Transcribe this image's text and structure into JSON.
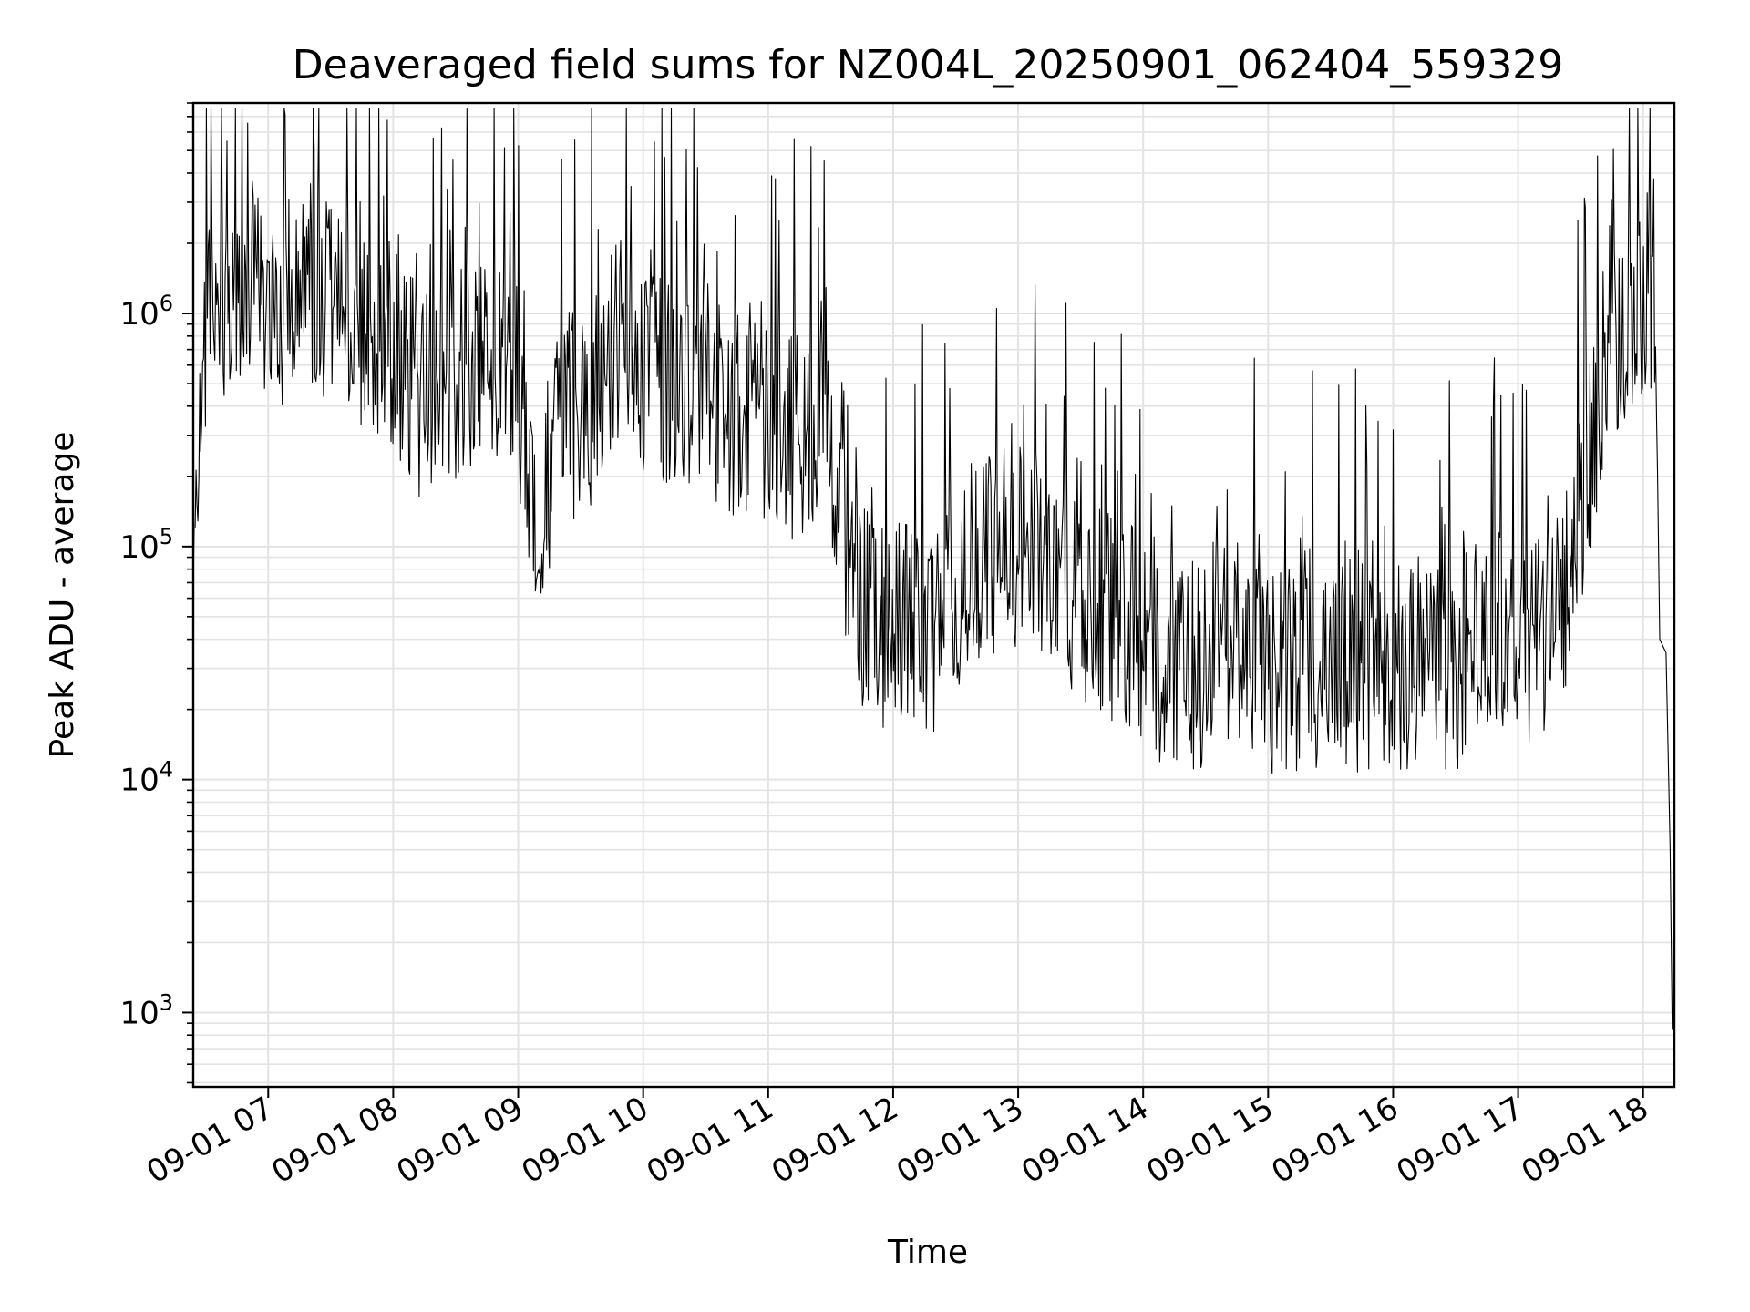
{
  "chart_data": {
    "type": "line",
    "title": "Deaveraged field sums for NZ004L_20250901_062404_559329",
    "xlabel": "Time",
    "ylabel": "Peak ADU - average",
    "y_scale": "log",
    "ylim": [
      480,
      8000000
    ],
    "xlim": [
      "2025-09-01 06:24",
      "2025-09-01 18:15"
    ],
    "grid": true,
    "legend": "none",
    "x_ticks": [
      "09-01 07",
      "09-01 08",
      "09-01 09",
      "09-01 10",
      "09-01 11",
      "09-01 12",
      "09-01 13",
      "09-01 14",
      "09-01 15",
      "09-01 16",
      "09-01 17",
      "09-01 18"
    ],
    "y_ticks": [
      {
        "base": "10",
        "exp": "3",
        "value": 1000
      },
      {
        "base": "10",
        "exp": "4",
        "value": 10000
      },
      {
        "base": "10",
        "exp": "5",
        "value": 100000
      },
      {
        "base": "10",
        "exp": "6",
        "value": 1000000
      }
    ],
    "series": [
      {
        "color": "#000000",
        "points": [
          [
            "2025-09-01 06:24",
            120000.0
          ],
          [
            "2025-09-01 06:30",
            800000.0
          ],
          [
            "2025-09-01 06:40",
            1300000.0
          ],
          [
            "2025-09-01 06:50",
            1500000.0
          ],
          [
            "2025-09-01 07:00",
            1200000.0
          ],
          [
            "2025-09-01 07:10",
            1100000.0
          ],
          [
            "2025-09-01 07:20",
            1300000.0
          ],
          [
            "2025-09-01 07:30",
            1200000.0
          ],
          [
            "2025-09-01 07:40",
            1000000.0
          ],
          [
            "2025-09-01 07:50",
            850000.0
          ],
          [
            "2025-09-01 08:00",
            700000.0
          ],
          [
            "2025-09-01 08:10",
            400000.0
          ],
          [
            "2025-09-01 08:20",
            400000.0
          ],
          [
            "2025-09-01 08:30",
            550000.0
          ],
          [
            "2025-09-01 08:40",
            600000.0
          ],
          [
            "2025-09-01 08:50",
            650000.0
          ],
          [
            "2025-09-01 09:00",
            500000.0
          ],
          [
            "2025-09-01 09:10",
            120000.0
          ],
          [
            "2025-09-01 09:20",
            400000.0
          ],
          [
            "2025-09-01 09:30",
            300000.0
          ],
          [
            "2025-09-01 09:40",
            600000.0
          ],
          [
            "2025-09-01 09:50",
            900000.0
          ],
          [
            "2025-09-01 10:00",
            600000.0
          ],
          [
            "2025-09-01 10:10",
            500000.0
          ],
          [
            "2025-09-01 10:20",
            500000.0
          ],
          [
            "2025-09-01 10:30",
            450000.0
          ],
          [
            "2025-09-01 10:40",
            400000.0
          ],
          [
            "2025-09-01 10:50",
            350000.0
          ],
          [
            "2025-09-01 11:00",
            300000.0
          ],
          [
            "2025-09-01 11:10",
            300000.0
          ],
          [
            "2025-09-01 11:20",
            300000.0
          ],
          [
            "2025-09-01 11:30",
            250000.0
          ],
          [
            "2025-09-01 11:40",
            70000.0
          ],
          [
            "2025-09-01 11:50",
            45000.0
          ],
          [
            "2025-09-01 12:00",
            50000.0
          ],
          [
            "2025-09-01 12:10",
            45000.0
          ],
          [
            "2025-09-01 12:20",
            45000.0
          ],
          [
            "2025-09-01 12:30",
            60000.0
          ],
          [
            "2025-09-01 12:40",
            80000.0
          ],
          [
            "2025-09-01 12:50",
            90000.0
          ],
          [
            "2025-09-01 13:00",
            100000.0
          ],
          [
            "2025-09-01 13:10",
            90000.0
          ],
          [
            "2025-09-01 13:20",
            80000.0
          ],
          [
            "2025-09-01 13:30",
            50000.0
          ],
          [
            "2025-09-01 13:40",
            50000.0
          ],
          [
            "2025-09-01 13:50",
            50000.0
          ],
          [
            "2025-09-01 14:00",
            40000.0
          ],
          [
            "2025-09-01 14:10",
            30000.0
          ],
          [
            "2025-09-01 14:20",
            30000.0
          ],
          [
            "2025-09-01 14:30",
            30000.0
          ],
          [
            "2025-09-01 14:40",
            40000.0
          ],
          [
            "2025-09-01 14:50",
            35000.0
          ],
          [
            "2025-09-01 15:00",
            30000.0
          ],
          [
            "2025-09-01 15:10",
            30000.0
          ],
          [
            "2025-09-01 15:20",
            30000.0
          ],
          [
            "2025-09-01 15:30",
            30000.0
          ],
          [
            "2025-09-01 15:40",
            30000.0
          ],
          [
            "2025-09-01 15:50",
            30000.0
          ],
          [
            "2025-09-01 16:00",
            30000.0
          ],
          [
            "2025-09-01 16:10",
            30000.0
          ],
          [
            "2025-09-01 16:20",
            30000.0
          ],
          [
            "2025-09-01 16:30",
            30000.0
          ],
          [
            "2025-09-01 16:40",
            45000.0
          ],
          [
            "2025-09-01 16:50",
            45000.0
          ],
          [
            "2025-09-01 17:00",
            35000.0
          ],
          [
            "2025-09-01 17:10",
            40000.0
          ],
          [
            "2025-09-01 17:20",
            50000.0
          ],
          [
            "2025-09-01 17:30",
            150000.0
          ],
          [
            "2025-09-01 17:40",
            500000.0
          ],
          [
            "2025-09-01 17:50",
            800000.0
          ],
          [
            "2025-09-01 18:00",
            1200000.0
          ],
          [
            "2025-09-01 18:05",
            1200000.0
          ],
          [
            "2025-09-01 18:08",
            40000.0
          ],
          [
            "2025-09-01 18:11",
            35000.0
          ],
          [
            "2025-09-01 18:13",
            5000.0
          ],
          [
            "2025-09-01 18:14",
            850.0
          ]
        ]
      }
    ]
  }
}
